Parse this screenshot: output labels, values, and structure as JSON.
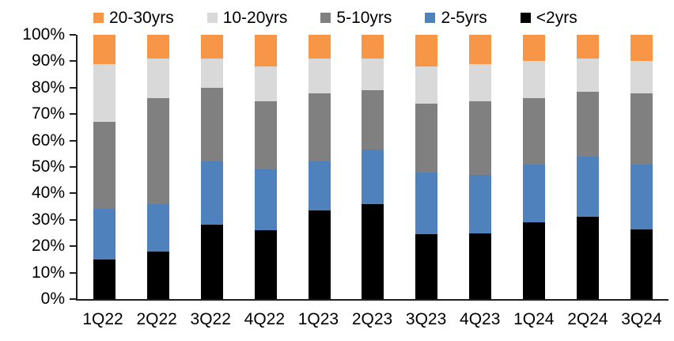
{
  "chart_data": {
    "type": "bar",
    "variant": "stacked-100-percent",
    "title": "",
    "xlabel": "",
    "ylabel": "",
    "grid": false,
    "categories": [
      "1Q22",
      "2Q22",
      "3Q22",
      "4Q22",
      "1Q23",
      "2Q23",
      "3Q23",
      "4Q23",
      "1Q24",
      "2Q24",
      "3Q24"
    ],
    "series": [
      {
        "name": "<2yrs",
        "color": "#000000",
        "values": [
          15,
          18,
          28,
          26,
          33.5,
          36,
          24.5,
          25,
          29,
          31,
          26.5
        ]
      },
      {
        "name": "2-5yrs",
        "color": "#4F81BD",
        "values": [
          19,
          18,
          24,
          23,
          18.5,
          20.5,
          23.5,
          22,
          22,
          23,
          24.5
        ]
      },
      {
        "name": "5-10yrs",
        "color": "#808080",
        "values": [
          33,
          40,
          28,
          26,
          26,
          22.5,
          26,
          28,
          25,
          24.5,
          27
        ]
      },
      {
        "name": "10-20yrs",
        "color": "#D9D9D9",
        "values": [
          22,
          15,
          11,
          13,
          13,
          12,
          14,
          14,
          14,
          12.5,
          12
        ]
      },
      {
        "name": "20-30yrs",
        "color": "#F79646",
        "values": [
          11,
          9,
          9,
          12,
          9,
          9,
          12,
          11,
          10,
          9,
          10
        ]
      }
    ],
    "legend": {
      "position": "top",
      "order": [
        "20-30yrs",
        "10-20yrs",
        "5-10yrs",
        "2-5yrs",
        "<2yrs"
      ]
    },
    "y_axis": {
      "min": 0,
      "max": 100,
      "tick_step": 10,
      "tick_labels": [
        "0%",
        "10%",
        "20%",
        "30%",
        "40%",
        "50%",
        "60%",
        "70%",
        "80%",
        "90%",
        "100%"
      ]
    }
  },
  "colors": {
    "background": "#FFFFFF",
    "axis": "#1F1F1F",
    "text": "#000000"
  }
}
